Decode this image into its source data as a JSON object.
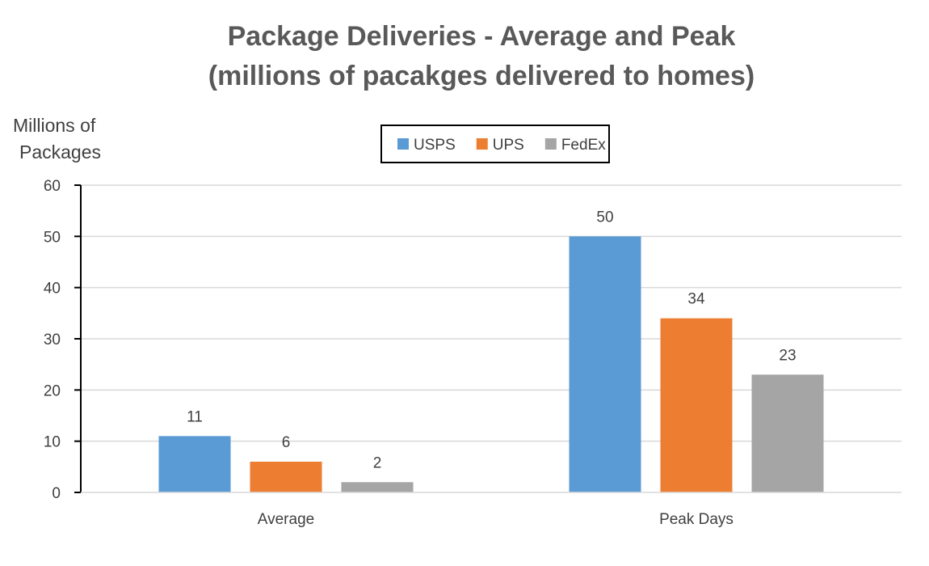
{
  "chart_data": {
    "type": "bar",
    "title_line1": "Package Deliveries - Average and Peak",
    "title_line2": "(millions of pacakges delivered to homes)",
    "ylabel_line1": "Millions of",
    "ylabel_line2": "Packages",
    "xlabel": "",
    "categories": [
      "Average",
      "Peak Days"
    ],
    "series": [
      {
        "name": "USPS",
        "values": [
          11,
          50
        ],
        "color": "#5B9BD5"
      },
      {
        "name": "UPS",
        "values": [
          6,
          34
        ],
        "color": "#ED7D31"
      },
      {
        "name": "FedEx",
        "values": [
          2,
          23
        ],
        "color": "#A5A5A5"
      }
    ],
    "ylim": [
      0,
      60
    ],
    "yticks": [
      0,
      10,
      20,
      30,
      40,
      50,
      60
    ],
    "grid": true,
    "legend_position": "top"
  }
}
